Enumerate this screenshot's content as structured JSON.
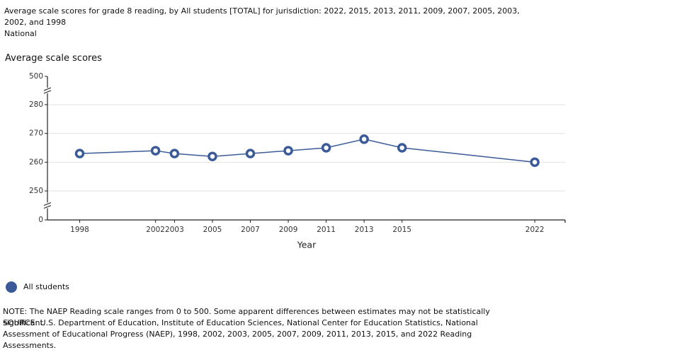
{
  "chart_data": {
    "type": "line",
    "title": "Average scale scores for grade 8 reading, by All students [TOTAL] for jurisdiction: 2022, 2015, 2013, 2011, 2009, 2007, 2005, 2003, 2002, and 1998",
    "subtitle": "National",
    "ylabel": "Average scale scores",
    "xlabel": "Year",
    "x": [
      1998,
      2002,
      2003,
      2005,
      2007,
      2009,
      2011,
      2013,
      2015,
      2022
    ],
    "series": [
      {
        "name": "All students",
        "color": "#3b5a98",
        "values": [
          263,
          264,
          263,
          262,
          263,
          264,
          265,
          268,
          265,
          260
        ]
      }
    ],
    "xlim": [
      1996.3,
      2023.6
    ],
    "xticks": [
      1998,
      2002,
      2003,
      2005,
      2007,
      2009,
      2011,
      2013,
      2015,
      2022
    ],
    "ylim": [
      0,
      500
    ],
    "yticks": [
      0,
      250,
      260,
      270,
      280,
      500
    ],
    "axis_break": true,
    "grid": true,
    "notes": [
      "NOTE: The NAEP Reading scale ranges from 0 to 500. Some apparent differences between estimates may not be statistically significant.",
      "SOURCE: U.S. Department of Education, Institute of Education Sciences, National Center for Education Statistics, National Assessment of Educational Progress (NAEP), 1998, 2002, 2003, 2005, 2007, 2009, 2011, 2013, 2015, and 2022 Reading Assessments."
    ]
  }
}
